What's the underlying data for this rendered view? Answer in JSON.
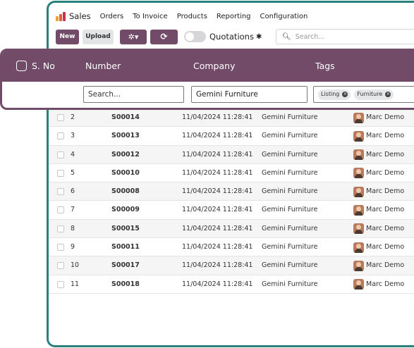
{
  "nav": {
    "app_name": "Sales",
    "items": [
      "Orders",
      "To Invoice",
      "Products",
      "Reporting",
      "Configuration"
    ]
  },
  "controls": {
    "new_label": "New",
    "upload_label": "Upload",
    "gear_glyph": "✲▾",
    "refresh_glyph": "⟳",
    "view_title": "Quotations",
    "view_gear": "✱",
    "search_placeholder": "Search..."
  },
  "table": {
    "headers": {
      "sno": "S. No",
      "number": "Number",
      "company": "Company",
      "tags": "Tags"
    },
    "filters": {
      "number_placeholder": "Search...",
      "company_value": "Gemini Furniture",
      "tags": [
        "Listing",
        "Furniture"
      ]
    },
    "rows": [
      {
        "sno": "2",
        "number": "S00014",
        "date": "11/04/2024 11:28:41",
        "company": "Gemini Furniture",
        "user": "Marc Demo"
      },
      {
        "sno": "3",
        "number": "S00013",
        "date": "11/04/2024 11:28:41",
        "company": "Gemini Furniture",
        "user": "Marc Demo"
      },
      {
        "sno": "4",
        "number": "S00012",
        "date": "11/04/2024 11:28:41",
        "company": "Gemini Furniture",
        "user": "Marc Demo"
      },
      {
        "sno": "5",
        "number": "S00010",
        "date": "11/04/2024 11:28:41",
        "company": "Gemini Furniture",
        "user": "Marc Demo"
      },
      {
        "sno": "6",
        "number": "S00008",
        "date": "11/04/2024 11:28:41",
        "company": "Gemini Furniture",
        "user": "Marc Demo"
      },
      {
        "sno": "7",
        "number": "S00009",
        "date": "11/04/2024 11:28:41",
        "company": "Gemini Furniture",
        "user": "Marc Demo"
      },
      {
        "sno": "8",
        "number": "S00015",
        "date": "11/04/2024 11:28:41",
        "company": "Gemini Furniture",
        "user": "Marc Demo"
      },
      {
        "sno": "9",
        "number": "S00011",
        "date": "11/04/2024 11:28:41",
        "company": "Gemini Furniture",
        "user": "Marc Demo"
      },
      {
        "sno": "10",
        "number": "S00017",
        "date": "11/04/2024 11:28:41",
        "company": "Gemini Furniture",
        "user": "Marc Demo"
      },
      {
        "sno": "11",
        "number": "S00018",
        "date": "11/04/2024 11:28:41",
        "company": "Gemini Furniture",
        "user": "Marc Demo"
      }
    ]
  },
  "colors": {
    "brand": "#714b67",
    "frame": "#2a7f7f"
  }
}
